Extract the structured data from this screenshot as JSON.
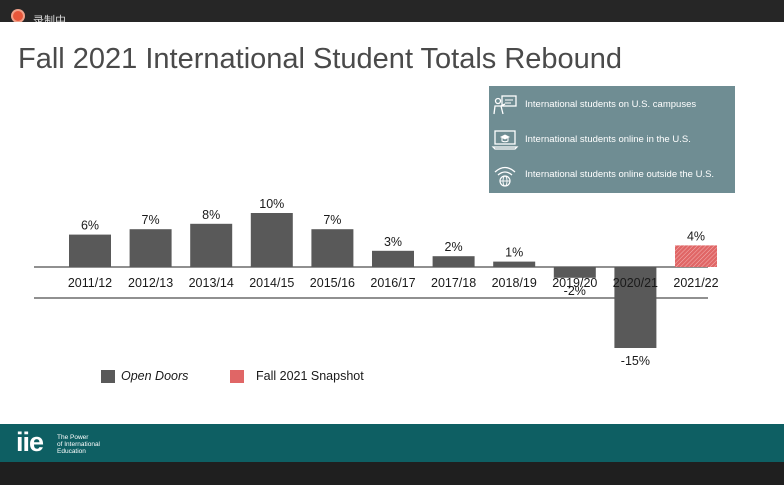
{
  "recording_label": "录制中",
  "slide_title": "Fall 2021 International Student Totals Rebound",
  "info_legend": [
    {
      "icon": "classroom-icon",
      "text": "International students on U.S. campuses"
    },
    {
      "icon": "laptop-graduation-icon",
      "text": "International students online in the U.S."
    },
    {
      "icon": "globe-wifi-icon",
      "text": "International students online outside the U.S."
    }
  ],
  "chart_data": {
    "type": "bar",
    "title": "Fall 2021 International Student Totals Rebound",
    "xlabel": "",
    "ylabel": "",
    "unit": "%",
    "ylim": [
      -15,
      10
    ],
    "grid": false,
    "legend": "bottom-left",
    "categories": [
      "2011/12",
      "2012/13",
      "2013/14",
      "2014/15",
      "2015/16",
      "2016/17",
      "2017/18",
      "2018/19",
      "2019/20",
      "2020/21",
      "2021/22"
    ],
    "values": [
      6,
      7,
      8,
      10,
      7,
      3,
      2,
      1,
      -2,
      -15,
      4
    ],
    "labels": [
      "6%",
      "7%",
      "8%",
      "10%",
      "7%",
      "3%",
      "2%",
      "1%",
      "-2%",
      "-15%",
      "4%"
    ],
    "series_of": [
      "Open Doors",
      "Open Doors",
      "Open Doors",
      "Open Doors",
      "Open Doors",
      "Open Doors",
      "Open Doors",
      "Open Doors",
      "Open Doors",
      "Open Doors",
      "Fall 2021 Snapshot"
    ],
    "series": [
      {
        "name": "Open Doors",
        "color": "#595959"
      },
      {
        "name": "Fall 2021 Snapshot",
        "color": "#e06666"
      }
    ]
  },
  "footer": {
    "logo": "iie",
    "tagline": [
      "The Power",
      "of International",
      "Education"
    ]
  }
}
